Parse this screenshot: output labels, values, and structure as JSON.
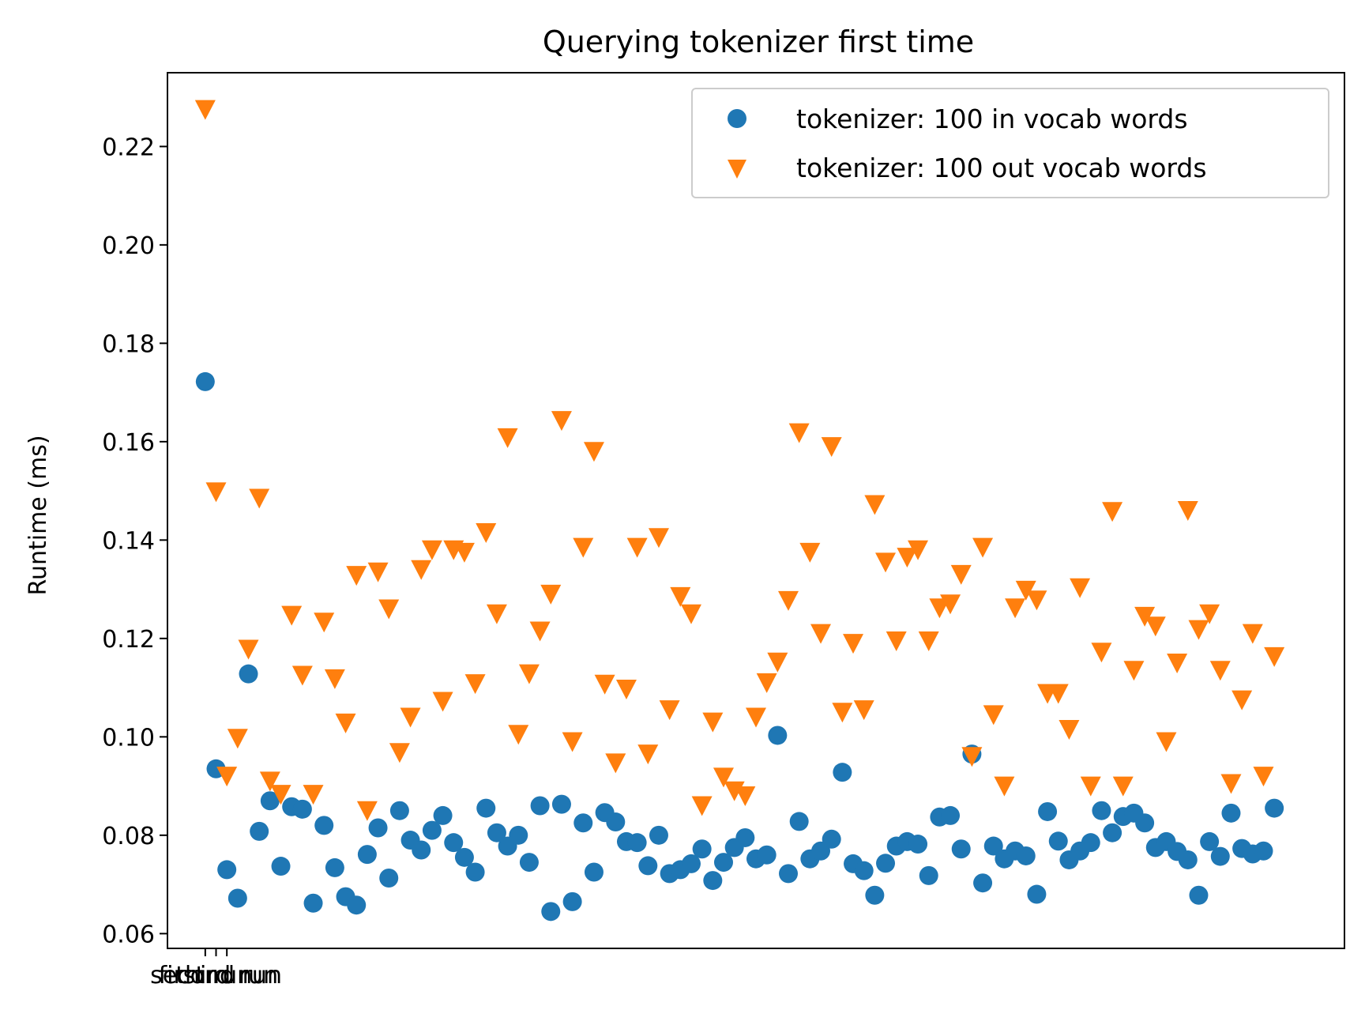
{
  "chart_data": {
    "type": "scatter",
    "title": "Querying tokenizer first time",
    "xlabel": "",
    "ylabel": "Runtime (ms)",
    "ylim": [
      0.057,
      0.235
    ],
    "xlim": [
      -3.5,
      105.5
    ],
    "yticks": [
      0.06,
      0.08,
      0.1,
      0.12,
      0.14,
      0.16,
      0.18,
      0.2,
      0.22
    ],
    "ytick_labels": [
      "0.06",
      "0.08",
      "0.10",
      "0.12",
      "0.14",
      "0.16",
      "0.18",
      "0.20",
      "0.22"
    ],
    "xticks": [
      0,
      1,
      2
    ],
    "xtick_labels": [
      "first run",
      "second run",
      "third run"
    ],
    "grid": false,
    "legend_position": "upper right",
    "series": [
      {
        "name": "tokenizer: 100 in vocab words",
        "marker": "circle",
        "color": "#1f77b4",
        "values": [
          0.1722,
          0.0935,
          0.073,
          0.0672,
          0.1128,
          0.0808,
          0.087,
          0.0737,
          0.0858,
          0.0853,
          0.0662,
          0.082,
          0.0734,
          0.0675,
          0.0658,
          0.0761,
          0.0815,
          0.0713,
          0.085,
          0.079,
          0.077,
          0.081,
          0.084,
          0.0785,
          0.0755,
          0.0725,
          0.0855,
          0.0805,
          0.0778,
          0.08,
          0.0745,
          0.086,
          0.0645,
          0.0863,
          0.0665,
          0.0825,
          0.0725,
          0.0846,
          0.0827,
          0.0787,
          0.0785,
          0.0738,
          0.08,
          0.0722,
          0.073,
          0.0742,
          0.0772,
          0.0708,
          0.0745,
          0.0775,
          0.0795,
          0.0752,
          0.076,
          0.1003,
          0.0722,
          0.0828,
          0.0752,
          0.0768,
          0.0792,
          0.0928,
          0.0742,
          0.0728,
          0.0678,
          0.0743,
          0.0778,
          0.0787,
          0.0782,
          0.0718,
          0.0837,
          0.084,
          0.0772,
          0.0965,
          0.0703,
          0.0778,
          0.0752,
          0.0768,
          0.0758,
          0.068,
          0.0848,
          0.0788,
          0.075,
          0.0768,
          0.0785,
          0.085,
          0.0805,
          0.0838,
          0.0845,
          0.0825,
          0.0775,
          0.0787,
          0.0767,
          0.075,
          0.0678,
          0.0787,
          0.0757,
          0.0845,
          0.0773,
          0.0762,
          0.0768,
          0.0855
        ]
      },
      {
        "name": "tokenizer: 100 out vocab words",
        "marker": "triangle-down",
        "color": "#ff7f0e",
        "values": [
          0.2275,
          0.1498,
          0.092,
          0.0997,
          0.1178,
          0.1485,
          0.091,
          0.0883,
          0.1247,
          0.1125,
          0.0883,
          0.1233,
          0.1118,
          0.1028,
          0.1328,
          0.085,
          0.1335,
          0.126,
          0.0968,
          0.104,
          0.134,
          0.138,
          0.1072,
          0.138,
          0.1375,
          0.1108,
          0.1415,
          0.125,
          0.1608,
          0.1005,
          0.1128,
          0.1215,
          0.129,
          0.1643,
          0.099,
          0.1385,
          0.158,
          0.1107,
          0.0947,
          0.1097,
          0.1385,
          0.0965,
          0.1405,
          0.1055,
          0.1285,
          0.125,
          0.086,
          0.103,
          0.0918,
          0.089,
          0.088,
          0.104,
          0.111,
          0.1152,
          0.1277,
          0.1618,
          0.1375,
          0.121,
          0.159,
          0.105,
          0.119,
          0.1055,
          0.1472,
          0.1355,
          0.1195,
          0.1365,
          0.138,
          0.1195,
          0.1262,
          0.127,
          0.133,
          0.096,
          0.1385,
          0.1045,
          0.09,
          0.1262,
          0.1298,
          0.1278,
          0.1088,
          0.1088,
          0.1015,
          0.1303,
          0.09,
          0.1172,
          0.1458,
          0.09,
          0.1135,
          0.1245,
          0.1225,
          0.099,
          0.115,
          0.146,
          0.1218,
          0.125,
          0.1135,
          0.0905,
          0.1075,
          0.121,
          0.092,
          0.1163
        ]
      }
    ]
  }
}
